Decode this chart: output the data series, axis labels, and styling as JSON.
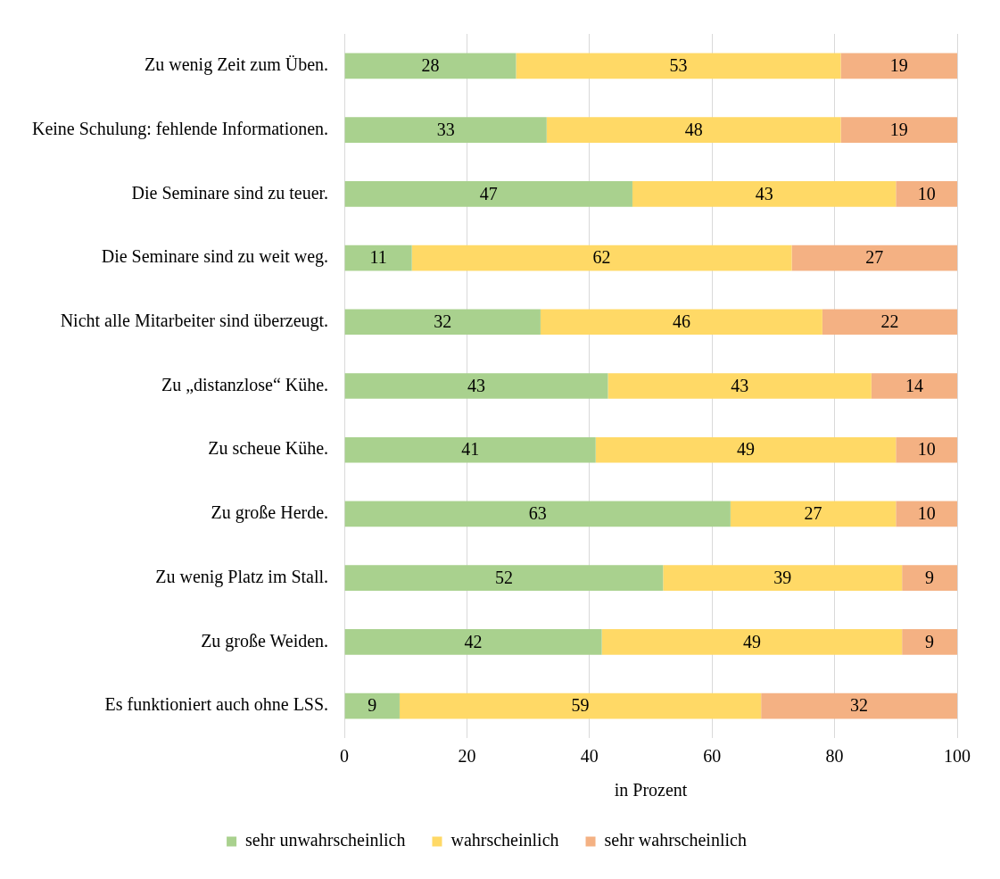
{
  "chart_data": {
    "type": "bar",
    "orientation": "horizontal",
    "stacked": true,
    "xlabel": "in Prozent",
    "categories": [
      "Zu wenig Zeit zum Üben.",
      "Keine Schulung: fehlende Informationen.",
      "Die Seminare sind zu teuer.",
      "Die Seminare sind zu weit weg.",
      "Nicht alle Mitarbeiter sind überzeugt.",
      "Zu „distanzlose“ Kühe.",
      "Zu scheue Kühe.",
      "Zu große Herde.",
      "Zu wenig Platz im Stall.",
      "Zu große Weiden.",
      "Es funktioniert auch ohne LSS."
    ],
    "series": [
      {
        "name": "sehr unwahrscheinlich",
        "color": "#a9d18e",
        "values": [
          28,
          33,
          47,
          11,
          32,
          43,
          41,
          63,
          52,
          42,
          9
        ]
      },
      {
        "name": "wahrscheinlich",
        "color": "#ffd966",
        "values": [
          53,
          48,
          43,
          62,
          46,
          43,
          49,
          27,
          39,
          49,
          59
        ]
      },
      {
        "name": "sehr wahrscheinlich",
        "color": "#f4b183",
        "values": [
          19,
          19,
          10,
          27,
          22,
          14,
          10,
          10,
          9,
          9,
          32
        ]
      }
    ],
    "xlim": [
      0,
      100
    ],
    "xticks": [
      0,
      20,
      40,
      60,
      80,
      100
    ],
    "grid": "x",
    "legend": "bottom",
    "data_labels": true
  }
}
